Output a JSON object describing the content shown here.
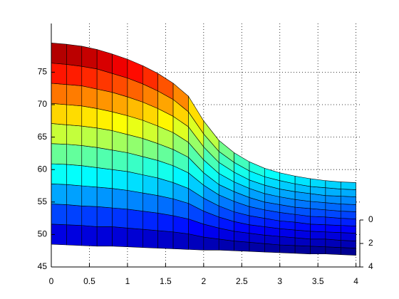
{
  "chart_data": {
    "type": "surface",
    "colormap": "jet",
    "grid": true,
    "x": [
      0,
      0.2,
      0.4,
      0.6,
      0.8,
      1.0,
      1.2,
      1.4,
      1.6,
      1.8,
      2.0,
      2.2,
      2.4,
      2.6,
      2.8,
      3.0,
      3.2,
      3.4,
      3.6,
      3.8,
      4.0
    ],
    "z": [
      [
        48.5,
        48.4,
        48.3,
        48.2,
        48.2,
        48.1,
        48.0,
        47.9,
        47.8,
        47.7,
        47.6,
        47.6,
        47.5,
        47.4,
        47.3,
        47.2,
        47.1,
        47.0,
        47.0,
        46.9,
        46.8
      ],
      [
        51.6,
        51.5,
        51.4,
        51.2,
        51.2,
        51.0,
        50.8,
        50.6,
        50.4,
        50.1,
        49.6,
        49.3,
        49.0,
        48.8,
        48.6,
        48.4,
        48.3,
        48.2,
        48.1,
        48.0,
        47.9
      ],
      [
        54.7,
        54.6,
        54.4,
        54.3,
        54.1,
        53.9,
        53.6,
        53.3,
        52.9,
        52.4,
        51.6,
        51.0,
        50.5,
        50.2,
        49.9,
        49.7,
        49.5,
        49.3,
        49.3,
        49.1,
        49.0
      ],
      [
        57.8,
        57.7,
        57.5,
        57.3,
        57.1,
        56.8,
        56.4,
        56.0,
        55.5,
        54.8,
        53.6,
        52.7,
        52.0,
        51.5,
        51.2,
        50.9,
        50.7,
        50.5,
        50.4,
        50.3,
        50.2
      ],
      [
        60.9,
        60.8,
        60.6,
        60.3,
        60.0,
        59.7,
        59.2,
        58.7,
        58.0,
        57.1,
        55.6,
        54.4,
        53.5,
        52.9,
        52.5,
        52.1,
        51.9,
        51.6,
        51.5,
        51.4,
        51.3
      ],
      [
        64.0,
        63.9,
        63.7,
        63.4,
        63.0,
        62.6,
        62.0,
        61.4,
        60.6,
        59.5,
        57.6,
        56.1,
        55.1,
        54.3,
        53.8,
        53.4,
        53.1,
        52.8,
        52.7,
        52.5,
        52.4
      ],
      [
        67.1,
        66.9,
        66.7,
        66.4,
        66.0,
        65.4,
        64.8,
        64.0,
        63.1,
        61.9,
        59.5,
        57.7,
        56.6,
        55.7,
        55.0,
        54.6,
        54.2,
        54.0,
        53.8,
        53.6,
        53.5
      ],
      [
        70.2,
        70.0,
        69.8,
        69.4,
        68.9,
        68.3,
        67.6,
        66.7,
        65.7,
        64.2,
        61.5,
        59.4,
        58.1,
        57.1,
        56.3,
        55.8,
        55.4,
        55.1,
        54.9,
        54.7,
        54.6
      ],
      [
        73.3,
        73.1,
        72.9,
        72.4,
        71.9,
        71.2,
        70.4,
        69.4,
        68.2,
        66.6,
        63.5,
        61.1,
        59.6,
        58.4,
        57.6,
        57.0,
        56.6,
        56.3,
        56.0,
        55.9,
        55.8
      ],
      [
        76.4,
        76.2,
        75.9,
        75.5,
        74.8,
        74.1,
        73.2,
        72.1,
        70.8,
        68.9,
        65.5,
        62.8,
        61.1,
        59.8,
        58.9,
        58.3,
        57.8,
        57.4,
        57.2,
        57.0,
        56.9
      ],
      [
        79.5,
        79.3,
        79.0,
        78.5,
        77.8,
        77.0,
        76.0,
        74.8,
        73.3,
        71.3,
        67.5,
        64.5,
        62.6,
        61.2,
        60.2,
        59.5,
        59.0,
        58.6,
        58.3,
        58.1,
        58.0
      ]
    ],
    "xlim": [
      0,
      4.05
    ],
    "xticks": [
      0,
      0.5,
      1,
      1.5,
      2,
      2.5,
      3,
      3.5,
      4
    ],
    "zlim": [
      45,
      82.5
    ],
    "zticks": [
      45,
      50,
      55,
      60,
      65,
      70,
      75
    ],
    "ylim": [
      0,
      4
    ],
    "yticks": [
      0,
      2,
      4
    ]
  }
}
